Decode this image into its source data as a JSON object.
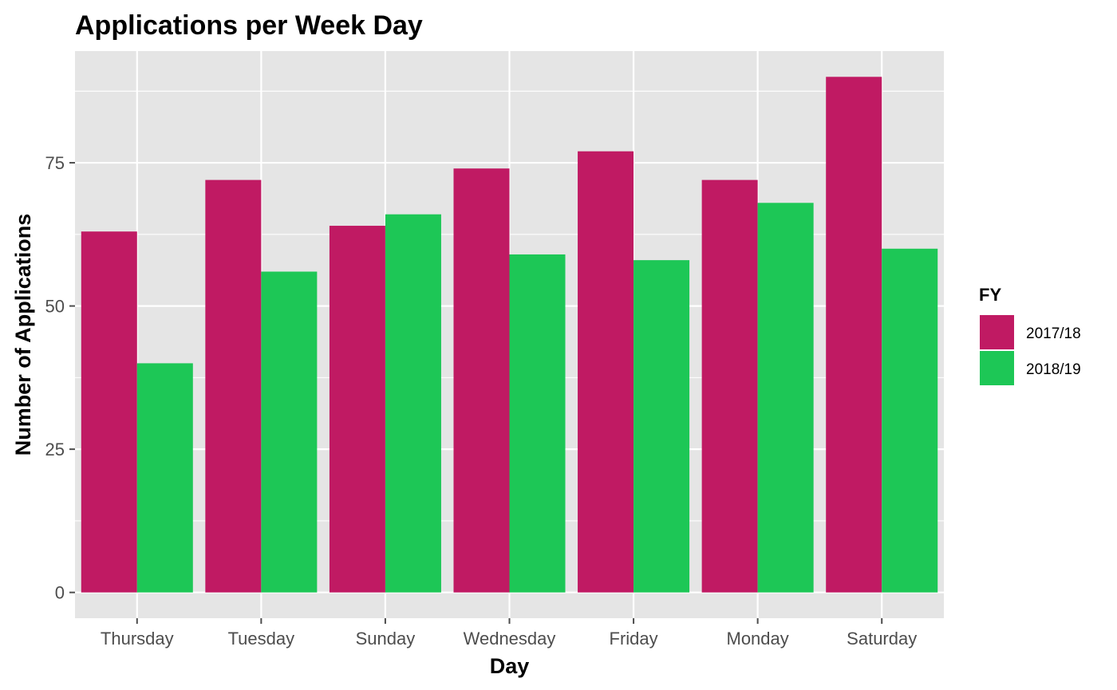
{
  "chart_data": {
    "type": "bar",
    "title": "Applications per Week Day",
    "xlabel": "Day",
    "ylabel": "Number of Applications",
    "categories": [
      "Thursday",
      "Tuesday",
      "Sunday",
      "Wednesday",
      "Friday",
      "Monday",
      "Saturday"
    ],
    "series": [
      {
        "name": "2017/18",
        "color": "#C01A63",
        "values": [
          63,
          72,
          64,
          74,
          77,
          72,
          90
        ]
      },
      {
        "name": "2018/19",
        "color": "#1DC756",
        "values": [
          40,
          56,
          66,
          59,
          58,
          68,
          60
        ]
      }
    ],
    "ylim": [
      -4.5,
      94.5
    ],
    "yticks": [
      0,
      25,
      50,
      75
    ],
    "ytick_labels": [
      "0",
      "25",
      "50",
      "75"
    ],
    "grid": true,
    "legend": {
      "title": "FY",
      "position": "right"
    },
    "panel_background": "#E5E5E5",
    "grid_color": "#FFFFFF",
    "tick_color": "#4D4D4D"
  }
}
